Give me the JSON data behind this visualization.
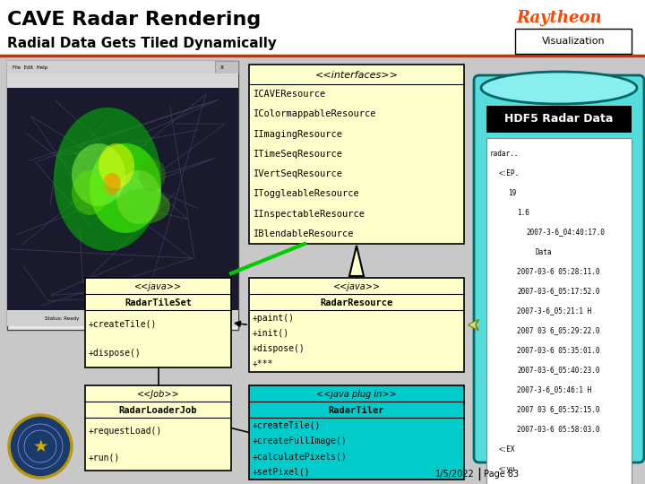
{
  "title_line1": "CAVE Radar Rendering",
  "title_line2": "Radial Data Gets Tiled Dynamically",
  "raytheon_text": "Raytheon",
  "raytheon_color": "#FF4500",
  "viz_label": "Visualization",
  "bg_color": "#C8C8C8",
  "divider_color": "#CC3300",
  "date_text": "1/5/2022",
  "page_text": "Page 83",
  "iface_lines": [
    "ICAVEResource",
    "IColormappableResource",
    "IImagingResource",
    "ITimeSeqResource",
    "IVertSeqResource",
    "IToggleableResource",
    "IInspectableResource",
    "IBlendableResource"
  ],
  "rr_lines": [
    "+paint()",
    "+init()",
    "+dispose()",
    "+***"
  ],
  "rts_lines": [
    "+createTile()",
    "+dispose()"
  ],
  "rl_lines": [
    "+requestLoad()",
    "+run()"
  ],
  "rtr_lines": [
    "+createTile()",
    "+createFullImage()",
    "+calculatePixels()",
    "+setPixel()"
  ]
}
